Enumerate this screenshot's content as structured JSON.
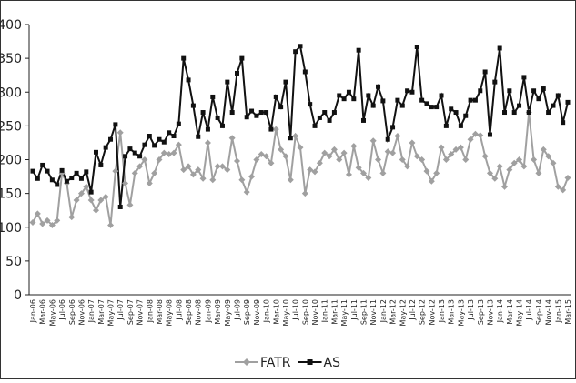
{
  "chart_data": {
    "type": "line",
    "categories": [
      "Jan-06",
      null,
      "Mar-06",
      null,
      "May-06",
      null,
      "Jul-06",
      null,
      "Sep-06",
      null,
      "Nov-06",
      null,
      "Jan-07",
      null,
      "Mar-07",
      null,
      "May-07",
      null,
      "Jul-07",
      null,
      "Sep-07",
      null,
      "Nov-07",
      null,
      "Jan-08",
      null,
      "Mar-08",
      null,
      "May-08",
      null,
      "Jul-08",
      null,
      "Sep-08",
      null,
      "Nov-08",
      null,
      "Jan-09",
      null,
      "Mar-09",
      null,
      "May-09",
      null,
      "Jul-09",
      null,
      "Sep-09",
      null,
      "Nov-09",
      null,
      "Jan-10",
      null,
      "Mar-10",
      null,
      "May-10",
      null,
      "Jul-10",
      null,
      "Sep-10",
      null,
      "Nov-10",
      null,
      "Jan-11",
      null,
      "Mar-11",
      null,
      "May-11",
      null,
      "Jul-11",
      null,
      "Sep-11",
      null,
      "Nov-11",
      null,
      "Jan-12",
      null,
      "Mar-12",
      null,
      "May-12",
      null,
      "Jul-12",
      null,
      "Sep-12",
      null,
      "Nov-12",
      null,
      "Jan-13",
      null,
      "Mar-13",
      null,
      "May-13",
      null,
      "Jul-13",
      null,
      "Sep-13",
      null,
      "Nov-13",
      null,
      "Jan-14",
      null,
      "Mar-14",
      null,
      "May-14",
      null,
      "Jul-14",
      null,
      "Sep-14",
      null,
      "Nov-14",
      null,
      "Jan-15",
      null,
      "Mar-15"
    ],
    "series": [
      {
        "name": "FATR",
        "color": "#a0a0a0",
        "marker": "diamond",
        "values": [
          107,
          120,
          105,
          110,
          103,
          110,
          180,
          165,
          115,
          140,
          150,
          160,
          140,
          125,
          140,
          145,
          103,
          183,
          240,
          165,
          133,
          180,
          190,
          200,
          165,
          180,
          200,
          210,
          208,
          210,
          222,
          185,
          190,
          178,
          185,
          172,
          225,
          170,
          190,
          190,
          185,
          232,
          198,
          170,
          152,
          175,
          200,
          208,
          205,
          195,
          245,
          215,
          205,
          170,
          235,
          218,
          150,
          185,
          182,
          195,
          210,
          205,
          215,
          200,
          210,
          178,
          220,
          188,
          180,
          173,
          228,
          200,
          180,
          212,
          210,
          235,
          200,
          190,
          225,
          205,
          200,
          183,
          168,
          180,
          218,
          200,
          208,
          215,
          218,
          200,
          230,
          238,
          236,
          205,
          180,
          172,
          190,
          160,
          185,
          195,
          200,
          190,
          270,
          200,
          180,
          215,
          205,
          195,
          160,
          155,
          173
        ]
      },
      {
        "name": "AS",
        "color": "#111111",
        "marker": "square",
        "values": [
          183,
          172,
          192,
          183,
          170,
          163,
          184,
          168,
          173,
          180,
          172,
          182,
          152,
          211,
          192,
          218,
          230,
          252,
          130,
          205,
          216,
          210,
          205,
          222,
          235,
          221,
          230,
          226,
          240,
          235,
          253,
          350,
          318,
          280,
          234,
          270,
          245,
          293,
          262,
          250,
          315,
          270,
          328,
          350,
          263,
          272,
          265,
          270,
          270,
          245,
          293,
          278,
          315,
          232,
          360,
          368,
          330,
          282,
          250,
          262,
          270,
          258,
          270,
          295,
          290,
          300,
          290,
          362,
          258,
          295,
          280,
          308,
          287,
          230,
          248,
          288,
          280,
          302,
          300,
          367,
          288,
          283,
          278,
          278,
          295,
          250,
          275,
          270,
          250,
          265,
          288,
          288,
          302,
          330,
          237,
          315,
          365,
          270,
          302,
          270,
          280,
          322,
          270,
          302,
          290,
          305,
          270,
          280,
          295,
          255,
          285
        ]
      }
    ],
    "ylim": [
      0,
      400
    ],
    "yticks": [
      0,
      50,
      100,
      150,
      200,
      250,
      300,
      350,
      400
    ],
    "grid": false,
    "legend": "bottom"
  }
}
